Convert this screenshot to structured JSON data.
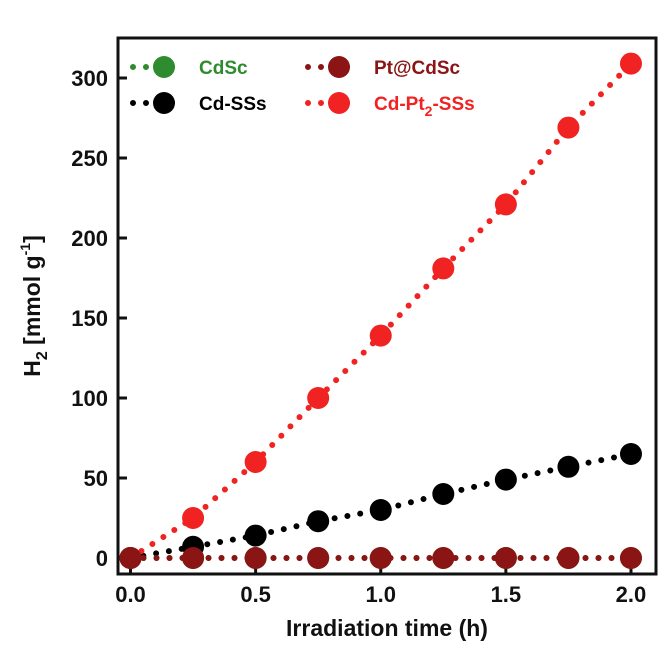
{
  "chart_data": {
    "type": "scatter",
    "xlabel": "Irradiation time (h)",
    "ylabel": {
      "base": "H",
      "sub": "2",
      "unit": " [mmol g",
      "sup": "-1",
      "close": "]"
    },
    "xlim": [
      -0.05,
      2.1
    ],
    "ylim": [
      -10,
      325
    ],
    "xticks": [
      0.0,
      0.5,
      1.0,
      1.5,
      2.0
    ],
    "xtick_labels": [
      "0.0",
      "0.5",
      "1.0",
      "1.5",
      "2.0"
    ],
    "yticks": [
      0,
      50,
      100,
      150,
      200,
      250,
      300
    ],
    "ytick_labels": [
      "0",
      "50",
      "100",
      "150",
      "200",
      "250",
      "300"
    ],
    "grid": false,
    "legend_position": "top-left",
    "legend": [
      {
        "series": 0,
        "parts": [
          {
            "text": "CdSc"
          }
        ]
      },
      {
        "series": 1,
        "parts": [
          {
            "text": "Cd-SSs"
          }
        ]
      },
      {
        "series": 2,
        "parts": [
          {
            "text": "Pt@CdSc"
          }
        ]
      },
      {
        "series": 3,
        "parts": [
          {
            "text": "Cd-Pt"
          },
          {
            "text": "2",
            "sub": true
          },
          {
            "text": "-SSs"
          }
        ]
      }
    ],
    "series": [
      {
        "name": "CdSc",
        "color": "#2e8b2e",
        "x": [
          0,
          0.25,
          0.5,
          0.75,
          1.0,
          1.25,
          1.5,
          1.75,
          2.0
        ],
        "y": [
          0,
          0,
          0,
          0,
          0,
          0,
          0,
          0,
          0
        ]
      },
      {
        "name": "Cd-SSs",
        "color": "#000000",
        "x": [
          0,
          0.25,
          0.5,
          0.75,
          1.0,
          1.25,
          1.5,
          1.75,
          2.0
        ],
        "y": [
          0,
          7,
          14,
          23,
          30,
          40,
          49,
          57,
          65
        ]
      },
      {
        "name": "Pt@CdSc",
        "color": "#8b1414",
        "x": [
          0,
          0.25,
          0.5,
          0.75,
          1.0,
          1.25,
          1.5,
          1.75,
          2.0
        ],
        "y": [
          0,
          0,
          0,
          0,
          0,
          0,
          0,
          0,
          0
        ]
      },
      {
        "name": "Cd-Pt2-SSs",
        "color": "#f02222",
        "x": [
          0,
          0.25,
          0.5,
          0.75,
          1.0,
          1.25,
          1.5,
          1.75,
          2.0
        ],
        "y": [
          0,
          25,
          60,
          100,
          139,
          181,
          221,
          269,
          309
        ]
      }
    ],
    "draw_order": [
      0,
      1,
      3,
      2
    ]
  }
}
